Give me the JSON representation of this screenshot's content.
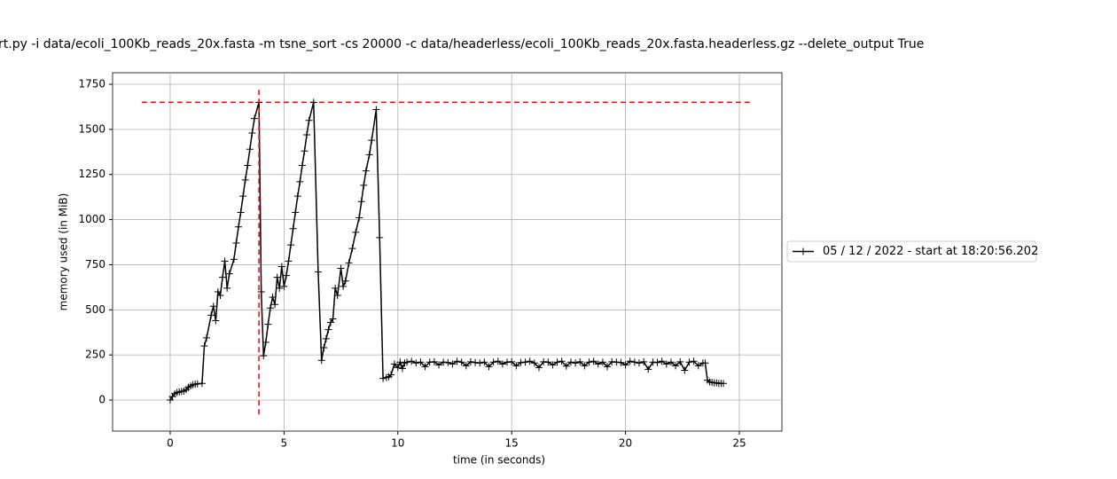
{
  "chart_data": {
    "type": "line",
    "title": "rt.py -i data/ecoli_100Kb_reads_20x.fasta -m tsne_sort -cs 20000 -c data/headerless/ecoli_100Kb_reads_20x.fasta.headerless.gz --delete_output True",
    "x_label": "time (in seconds)",
    "y_label": "memory used (in MiB)",
    "xlim": [
      -2.53,
      26.87
    ],
    "ylim": [
      -172,
      1814
    ],
    "xticks": [
      0,
      5,
      10,
      15,
      20,
      25
    ],
    "yticks": [
      0,
      250,
      500,
      750,
      1000,
      1250,
      1500,
      1750
    ],
    "grid": true,
    "legend": "right",
    "series": [
      {
        "name": "05 / 12 / 2022 - start at 18:20:56.202",
        "color": "#000000",
        "x": [
          0,
          0.1,
          0.2,
          0.3,
          0.4,
          0.5,
          0.6,
          0.7,
          0.8,
          0.9,
          1.0,
          1.1,
          1.2,
          1.4,
          1.5,
          1.6,
          1.8,
          1.9,
          2.0,
          2.1,
          2.2,
          2.3,
          2.4,
          2.5,
          2.6,
          2.8,
          2.9,
          3.0,
          3.1,
          3.2,
          3.3,
          3.4,
          3.5,
          3.6,
          3.7,
          3.9,
          4.0,
          4.1,
          4.2,
          4.3,
          4.4,
          4.5,
          4.6,
          4.7,
          4.8,
          4.9,
          5.0,
          5.1,
          5.2,
          5.3,
          5.4,
          5.5,
          5.6,
          5.7,
          5.8,
          5.9,
          6.0,
          6.1,
          6.3,
          6.5,
          6.65,
          6.75,
          6.85,
          6.95,
          7.05,
          7.15,
          7.25,
          7.35,
          7.5,
          7.6,
          7.7,
          7.85,
          8.0,
          8.15,
          8.3,
          8.4,
          8.5,
          8.6,
          8.75,
          8.85,
          9.05,
          9.2,
          9.35,
          9.5,
          9.6,
          9.7,
          9.85,
          10.0,
          10.1,
          10.2,
          10.3,
          10.4,
          10.6,
          10.8,
          11.0,
          11.2,
          11.4,
          11.6,
          11.8,
          12.0,
          12.2,
          12.4,
          12.6,
          12.8,
          13.0,
          13.2,
          13.4,
          13.6,
          13.8,
          14.0,
          14.2,
          14.4,
          14.6,
          14.8,
          15.0,
          15.2,
          15.4,
          15.6,
          15.8,
          16.0,
          16.2,
          16.4,
          16.6,
          16.8,
          17.0,
          17.2,
          17.4,
          17.6,
          17.8,
          18.0,
          18.2,
          18.4,
          18.6,
          18.8,
          19.0,
          19.2,
          19.4,
          19.6,
          19.8,
          20.0,
          20.2,
          20.4,
          20.6,
          20.8,
          21.0,
          21.2,
          21.4,
          21.6,
          21.8,
          22.0,
          22.2,
          22.4,
          22.6,
          22.8,
          23.0,
          23.2,
          23.4,
          23.5,
          23.6,
          23.7,
          23.8,
          23.9,
          24.0,
          24.1,
          24.2,
          24.3
        ],
        "values": [
          0,
          20,
          35,
          42,
          45,
          48,
          50,
          58,
          70,
          78,
          85,
          88,
          90,
          92,
          300,
          345,
          470,
          520,
          440,
          600,
          580,
          680,
          770,
          620,
          700,
          780,
          870,
          960,
          1040,
          1130,
          1220,
          1300,
          1390,
          1480,
          1560,
          1650,
          600,
          245,
          320,
          420,
          510,
          570,
          530,
          680,
          620,
          740,
          630,
          690,
          770,
          860,
          950,
          1040,
          1130,
          1210,
          1300,
          1380,
          1470,
          1550,
          1650,
          710,
          220,
          290,
          340,
          390,
          430,
          450,
          620,
          580,
          730,
          630,
          660,
          760,
          840,
          930,
          1010,
          1100,
          1190,
          1270,
          1360,
          1440,
          1610,
          900,
          120,
          125,
          130,
          140,
          200,
          180,
          210,
          175,
          205,
          210,
          215,
          205,
          210,
          185,
          210,
          212,
          195,
          210,
          208,
          200,
          215,
          210,
          190,
          212,
          208,
          205,
          210,
          185,
          210,
          215,
          200,
          210,
          212,
          190,
          208,
          210,
          215,
          205,
          180,
          212,
          210,
          195,
          210,
          215,
          188,
          210,
          205,
          212,
          190,
          210,
          215,
          200,
          210,
          185,
          212,
          210,
          208,
          195,
          215,
          210,
          205,
          212,
          170,
          210,
          208,
          215,
          200,
          210,
          190,
          212,
          165,
          210,
          215,
          190,
          205,
          205,
          110,
          100,
          98,
          95,
          95,
          92,
          92,
          92
        ]
      }
    ],
    "hline": {
      "y": 1650,
      "x": [
        -1.25,
        25.5
      ],
      "color": "#ff0000"
    },
    "vline": {
      "x": 3.9,
      "y": [
        -80,
        1730
      ],
      "color": "#ff0000"
    }
  }
}
